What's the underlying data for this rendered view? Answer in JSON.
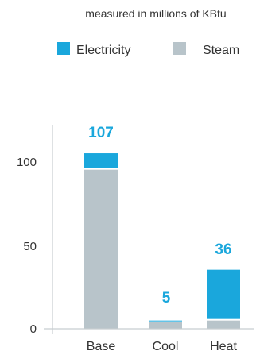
{
  "colors": {
    "electricity": "#1aa7dc",
    "steam": "#b8c4ca",
    "axis": "#c8cdd0",
    "text": "#333333",
    "total_label": "#1aa7dc"
  },
  "chart_data": {
    "type": "bar",
    "stacked": true,
    "subtitle": "measured in millions of KBtu",
    "legend_placement": "top",
    "categories": [
      "Base",
      "Cool",
      "Heat"
    ],
    "series": [
      {
        "name": "Electricity",
        "values": [
          10,
          1,
          31
        ]
      },
      {
        "name": "Steam",
        "values": [
          97,
          4,
          5
        ]
      }
    ],
    "totals": [
      "107",
      "5",
      "36"
    ],
    "y_ticks": [
      "0",
      "50",
      "100"
    ],
    "ylim": [
      0,
      120
    ],
    "grid": false
  }
}
